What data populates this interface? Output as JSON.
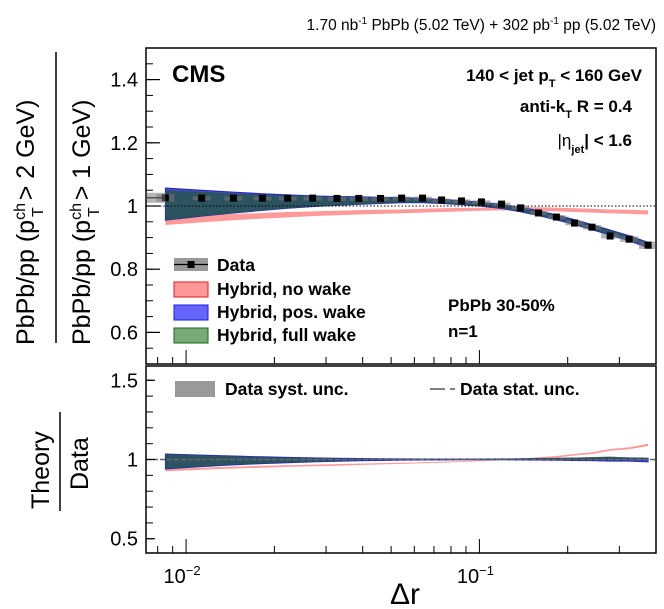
{
  "chart_data": {
    "type": "line",
    "header": {
      "lumi_pbpb": "1.70 nb",
      "lumi_pbpb_exp": "-1",
      "pbpb_label": " PbPb (5.02 TeV) + 302 pb",
      "lumi_pp_exp": "-1",
      "pp_label": " pp (5.02 TeV)"
    },
    "cms_label": "CMS",
    "annotations": {
      "jet_pt_pre": "140 < jet p",
      "jet_pt_sub": "T",
      "jet_pt_post": " < 160 GeV",
      "algo_pre": "anti-k",
      "algo_sub": "T",
      "algo_post": " R = 0.4",
      "eta_pre": "|η",
      "eta_sub": "jet",
      "eta_post": "| < 1.6",
      "centrality": "PbPb 30-50%",
      "n_label": "n=1"
    },
    "top_panel": {
      "ylabel_num_pre": "PbPb/pp (p",
      "ylabel_num_sup": "ch",
      "ylabel_num_sub": "T",
      "ylabel_num_post": " > 2 GeV)",
      "ylabel_den_pre": "PbPb/pp (p",
      "ylabel_den_sup": "ch",
      "ylabel_den_sub": "T",
      "ylabel_den_post": " > 1 GeV)",
      "ylim": [
        0.5,
        1.5
      ],
      "yticks": [
        0.6,
        0.8,
        1.0,
        1.2,
        1.4
      ],
      "ytick_labels": [
        "0.6",
        "0.8",
        "1",
        "1.2",
        "1.4"
      ],
      "reference_line": 1.0,
      "legend": [
        {
          "label": "Data",
          "color": "#000000"
        },
        {
          "label": "Hybrid, no wake",
          "color": "#ff9999"
        },
        {
          "label": "Hybrid, pos. wake",
          "color": "#6666ff"
        },
        {
          "label": "Hybrid, full wake",
          "color": "#77aa77"
        }
      ]
    },
    "bottom_panel": {
      "ylabel_num": "Theory",
      "ylabel_den": "Data",
      "ylim": [
        0.41,
        1.59
      ],
      "yticks": [
        0.5,
        1.0,
        1.5
      ],
      "ytick_labels": [
        "0.5",
        "1",
        "1.5"
      ],
      "reference_line": 1.0,
      "legend": [
        {
          "label": "Data syst. unc.",
          "color": "#999999"
        },
        {
          "label": "Data stat. unc.",
          "color": "#000000"
        }
      ]
    },
    "xlabel": "Δr",
    "xscale": "log",
    "xlim": [
      0.0073,
      0.4
    ],
    "xtick_labels": [
      {
        "value": 0.01,
        "base": "10",
        "exp": "−2"
      },
      {
        "value": 0.1,
        "base": "10",
        "exp": "−1"
      }
    ],
    "x": [
      0.0085,
      0.0113,
      0.0145,
      0.0182,
      0.0222,
      0.027,
      0.0327,
      0.0388,
      0.046,
      0.0543,
      0.064,
      0.0743,
      0.0869,
      0.1016,
      0.119,
      0.138,
      0.159,
      0.183,
      0.211,
      0.242,
      0.279,
      0.324,
      0.376
    ],
    "series": [
      {
        "name": "Data",
        "values": [
          1.026,
          1.025,
          1.025,
          1.025,
          1.025,
          1.025,
          1.024,
          1.024,
          1.024,
          1.025,
          1.025,
          1.019,
          1.016,
          1.013,
          1.006,
          0.994,
          0.978,
          0.965,
          0.946,
          0.933,
          0.905,
          0.895,
          0.876
        ],
        "syst_unc": [
          0.012,
          0.006,
          0.005,
          0.005,
          0.005,
          0.005,
          0.005,
          0.005,
          0.005,
          0.005,
          0.005,
          0.005,
          0.005,
          0.005,
          0.005,
          0.006,
          0.006,
          0.006,
          0.007,
          0.007,
          0.008,
          0.009,
          0.012
        ]
      },
      {
        "name": "Hybrid, no wake",
        "band_low": [
          0.94,
          0.948,
          0.955,
          0.96,
          0.964,
          0.968,
          0.971,
          0.973,
          0.975,
          0.977,
          0.979,
          0.981,
          0.983,
          0.985,
          0.986,
          0.986,
          0.985,
          0.983,
          0.981,
          0.979,
          0.977,
          0.975,
          0.973
        ],
        "band_high": [
          0.965,
          0.97,
          0.975,
          0.978,
          0.981,
          0.983,
          0.985,
          0.987,
          0.988,
          0.989,
          0.991,
          0.993,
          0.994,
          0.995,
          0.996,
          0.996,
          0.996,
          0.995,
          0.993,
          0.991,
          0.989,
          0.988,
          0.986
        ]
      },
      {
        "name": "Hybrid, pos. wake",
        "band_low": [
          0.955,
          0.968,
          0.978,
          0.986,
          0.993,
          0.998,
          1.002,
          1.005,
          1.008,
          1.01,
          1.01,
          1.008,
          1.004,
          0.999,
          0.992,
          0.982,
          0.97,
          0.956,
          0.941,
          0.925,
          0.908,
          0.89,
          0.868
        ],
        "band_high": [
          1.057,
          1.05,
          1.044,
          1.039,
          1.035,
          1.032,
          1.03,
          1.029,
          1.028,
          1.027,
          1.024,
          1.021,
          1.017,
          1.012,
          1.005,
          0.996,
          0.985,
          0.972,
          0.957,
          0.941,
          0.924,
          0.906,
          0.885
        ]
      },
      {
        "name": "Hybrid, full wake",
        "band_low": [
          0.955,
          0.968,
          0.978,
          0.986,
          0.993,
          0.998,
          1.002,
          1.005,
          1.008,
          1.01,
          1.01,
          1.008,
          1.004,
          0.999,
          0.993,
          0.983,
          0.971,
          0.958,
          0.943,
          0.927,
          0.91,
          0.892,
          0.872
        ],
        "band_high": [
          1.05,
          1.045,
          1.04,
          1.036,
          1.033,
          1.031,
          1.029,
          1.028,
          1.027,
          1.026,
          1.023,
          1.02,
          1.016,
          1.011,
          1.004,
          0.995,
          0.984,
          0.971,
          0.956,
          0.94,
          0.923,
          0.905,
          0.884
        ]
      }
    ],
    "ratio_series": [
      {
        "name": "Hybrid, no wake",
        "band_low": [
          0.925,
          0.935,
          0.943,
          0.948,
          0.953,
          0.957,
          0.961,
          0.965,
          0.969,
          0.972,
          0.976,
          0.98,
          0.984,
          0.989,
          0.996,
          1.0,
          1.006,
          1.012,
          1.025,
          1.035,
          1.055,
          1.065,
          1.085
        ],
        "band_high": [
          0.94,
          0.948,
          0.955,
          0.96,
          0.964,
          0.968,
          0.971,
          0.974,
          0.977,
          0.98,
          0.983,
          0.986,
          0.99,
          0.994,
          1.0,
          1.006,
          1.014,
          1.022,
          1.035,
          1.046,
          1.066,
          1.077,
          1.1
        ]
      },
      {
        "name": "Hybrid, pos. wake",
        "band_low": [
          0.94,
          0.955,
          0.966,
          0.974,
          0.98,
          0.985,
          0.989,
          0.992,
          0.994,
          0.996,
          0.997,
          0.997,
          0.998,
          0.998,
          0.998,
          0.997,
          0.996,
          0.995,
          0.994,
          0.993,
          0.99,
          0.99,
          0.985
        ],
        "band_high": [
          1.035,
          1.028,
          1.022,
          1.017,
          1.013,
          1.01,
          1.008,
          1.006,
          1.005,
          1.004,
          1.003,
          1.003,
          1.003,
          1.003,
          1.004,
          1.005,
          1.006,
          1.007,
          1.009,
          1.01,
          1.012,
          1.01,
          1.008
        ]
      },
      {
        "name": "Hybrid, full wake",
        "band_low": [
          0.942,
          0.956,
          0.967,
          0.975,
          0.981,
          0.986,
          0.99,
          0.993,
          0.995,
          0.997,
          0.998,
          0.998,
          0.999,
          0.999,
          0.999,
          0.999,
          0.998,
          0.998,
          0.997,
          0.997,
          0.996,
          0.996,
          0.995
        ],
        "band_high": [
          1.033,
          1.027,
          1.021,
          1.016,
          1.012,
          1.009,
          1.007,
          1.005,
          1.004,
          1.003,
          1.003,
          1.003,
          1.004,
          1.004,
          1.005,
          1.006,
          1.008,
          1.01,
          1.012,
          1.015,
          1.018,
          1.012,
          1.01
        ]
      }
    ]
  }
}
